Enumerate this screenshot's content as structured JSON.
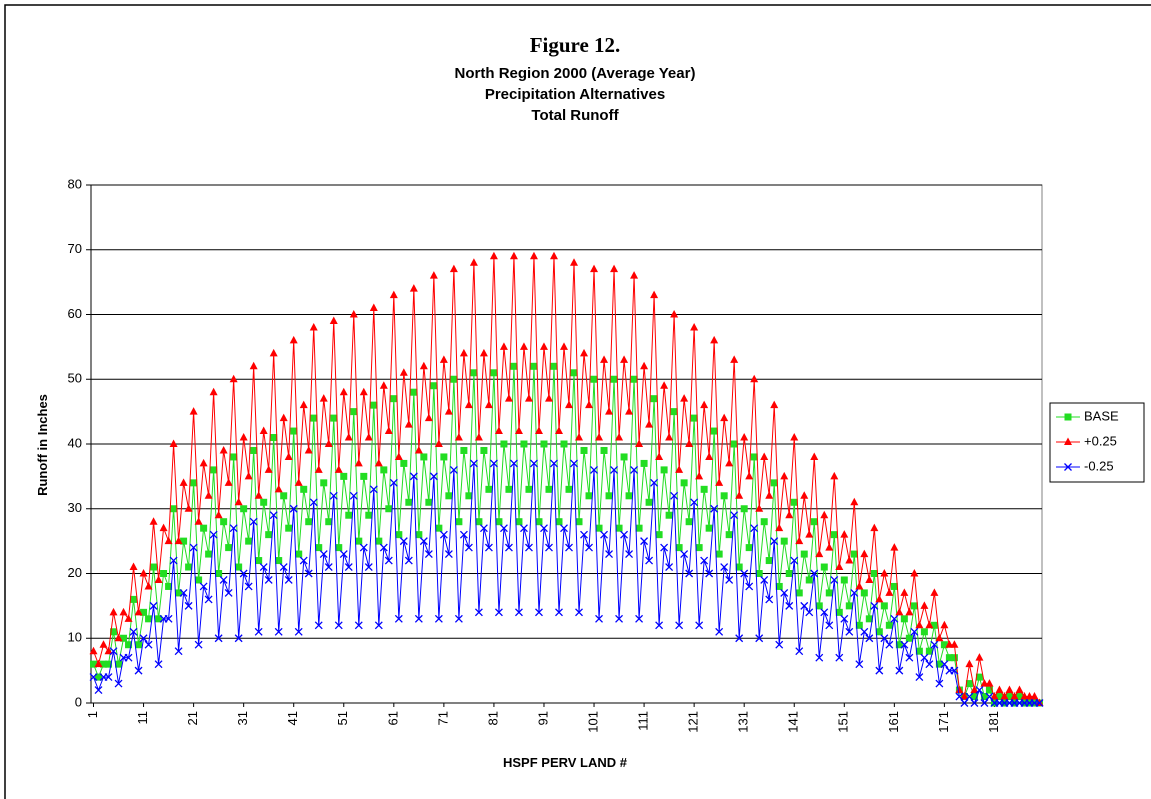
{
  "chart_data": {
    "type": "line",
    "figure_label": "Figure 12.",
    "title": "North Region 2000 (Average Year)",
    "subtitle": "Precipitation Alternatives",
    "subtitle2": "Total Runoff",
    "x_label": "HSPF PERV LAND #",
    "y_label": "Runoff in Inches",
    "ylim": [
      0,
      80
    ],
    "yticks": [
      0,
      10,
      20,
      30,
      40,
      50,
      60,
      70,
      80
    ],
    "grid": true,
    "legend": "right",
    "categories": [
      "1",
      null,
      null,
      null,
      null,
      null,
      null,
      null,
      null,
      null,
      "11",
      null,
      null,
      null,
      null,
      null,
      null,
      null,
      null,
      null,
      "21",
      null,
      null,
      null,
      null,
      null,
      null,
      null,
      null,
      null,
      "31",
      null,
      null,
      null,
      null,
      null,
      null,
      null,
      null,
      null,
      "41",
      null,
      null,
      null,
      null,
      null,
      null,
      null,
      null,
      null,
      "51",
      null,
      null,
      null,
      null,
      null,
      null,
      null,
      null,
      null,
      "61",
      null,
      null,
      null,
      null,
      null,
      null,
      null,
      null,
      null,
      "71",
      null,
      null,
      null,
      null,
      null,
      null,
      null,
      null,
      null,
      "81",
      null,
      null,
      null,
      null,
      null,
      null,
      null,
      null,
      null,
      "91",
      null,
      null,
      null,
      null,
      null,
      null,
      null,
      null,
      null,
      "101",
      null,
      null,
      null,
      null,
      null,
      null,
      null,
      null,
      null,
      "111",
      null,
      null,
      null,
      null,
      null,
      null,
      null,
      null,
      null,
      "121",
      null,
      null,
      null,
      null,
      null,
      null,
      null,
      null,
      null,
      "131",
      null,
      null,
      null,
      null,
      null,
      null,
      null,
      null,
      null,
      "141",
      null,
      null,
      null,
      null,
      null,
      null,
      null,
      null,
      null,
      "151",
      null,
      null,
      null,
      null,
      null,
      null,
      null,
      null,
      null,
      "161",
      null,
      null,
      null,
      null,
      null,
      null,
      null,
      null,
      null,
      "171",
      null,
      null,
      null,
      null,
      null,
      null,
      null,
      null,
      null,
      "181",
      null,
      null,
      null,
      null,
      null,
      null,
      null,
      null,
      null
    ],
    "series": [
      {
        "name": "BASE",
        "color": "#22dd22",
        "marker": "square",
        "values": [
          6,
          4,
          6,
          6,
          11,
          6,
          10,
          9,
          16,
          9,
          14,
          13,
          21,
          13,
          20,
          18,
          30,
          17,
          25,
          21,
          34,
          19,
          27,
          23,
          36,
          20,
          28,
          24,
          38,
          21,
          30,
          25,
          39,
          22,
          31,
          26,
          41,
          22,
          32,
          27,
          42,
          23,
          33,
          28,
          44,
          24,
          34,
          28,
          44,
          24,
          35,
          29,
          45,
          25,
          35,
          29,
          46,
          25,
          36,
          30,
          47,
          26,
          37,
          31,
          48,
          26,
          38,
          31,
          49,
          27,
          38,
          32,
          50,
          28,
          39,
          32,
          51,
          28,
          39,
          33,
          51,
          28,
          40,
          33,
          52,
          28,
          40,
          33,
          52,
          28,
          40,
          33,
          52,
          28,
          40,
          33,
          51,
          28,
          39,
          32,
          50,
          27,
          39,
          32,
          50,
          27,
          38,
          32,
          50,
          27,
          37,
          31,
          47,
          26,
          36,
          29,
          45,
          24,
          34,
          28,
          44,
          24,
          33,
          27,
          42,
          23,
          32,
          26,
          40,
          21,
          30,
          24,
          38,
          20,
          28,
          22,
          34,
          18,
          25,
          20,
          31,
          17,
          23,
          19,
          28,
          15,
          21,
          17,
          26,
          14,
          19,
          15,
          23,
          12,
          17,
          13,
          20,
          11,
          15,
          12,
          18,
          9,
          13,
          10,
          15,
          8,
          11,
          8,
          12,
          6,
          9,
          7,
          7,
          2,
          1,
          3,
          1,
          4,
          1,
          2,
          0,
          1,
          0,
          1,
          0,
          1,
          0,
          0,
          0,
          0
        ]
      },
      {
        "name": "+0.25",
        "color": "#ff0000",
        "marker": "triangle",
        "values": [
          8,
          6,
          9,
          8,
          14,
          10,
          14,
          13,
          21,
          14,
          20,
          18,
          28,
          19,
          27,
          25,
          40,
          25,
          34,
          30,
          45,
          28,
          37,
          32,
          48,
          29,
          39,
          34,
          50,
          31,
          41,
          35,
          52,
          32,
          42,
          36,
          54,
          33,
          44,
          38,
          56,
          34,
          46,
          39,
          58,
          36,
          47,
          40,
          59,
          36,
          48,
          41,
          60,
          37,
          48,
          41,
          61,
          37,
          49,
          42,
          63,
          38,
          51,
          43,
          64,
          39,
          52,
          44,
          66,
          40,
          53,
          45,
          67,
          41,
          54,
          46,
          68,
          41,
          54,
          46,
          69,
          42,
          55,
          47,
          69,
          42,
          55,
          47,
          69,
          42,
          55,
          47,
          69,
          42,
          55,
          46,
          68,
          41,
          54,
          46,
          67,
          41,
          53,
          45,
          67,
          41,
          53,
          45,
          66,
          40,
          52,
          43,
          63,
          38,
          49,
          41,
          60,
          36,
          47,
          40,
          58,
          35,
          46,
          38,
          56,
          34,
          44,
          37,
          53,
          32,
          41,
          35,
          50,
          30,
          38,
          32,
          46,
          27,
          35,
          29,
          41,
          25,
          32,
          26,
          38,
          23,
          29,
          24,
          35,
          21,
          26,
          22,
          31,
          18,
          23,
          19,
          27,
          16,
          20,
          17,
          24,
          14,
          17,
          14,
          20,
          12,
          15,
          12,
          17,
          10,
          12,
          9,
          9,
          2,
          1,
          6,
          2,
          7,
          3,
          3,
          1,
          2,
          1,
          2,
          1,
          2,
          1,
          1,
          1,
          0
        ]
      },
      {
        "name": "-0.25",
        "color": "#0000ff",
        "marker": "x",
        "values": [
          4,
          2,
          4,
          4,
          8,
          3,
          7,
          7,
          11,
          5,
          10,
          9,
          15,
          6,
          13,
          13,
          22,
          8,
          17,
          15,
          24,
          9,
          18,
          16,
          26,
          10,
          19,
          17,
          27,
          10,
          20,
          18,
          28,
          11,
          21,
          19,
          29,
          11,
          21,
          19,
          30,
          11,
          22,
          20,
          31,
          12,
          23,
          21,
          32,
          12,
          23,
          21,
          32,
          12,
          24,
          21,
          33,
          12,
          24,
          22,
          34,
          13,
          25,
          22,
          35,
          13,
          25,
          23,
          35,
          13,
          26,
          23,
          36,
          13,
          26,
          24,
          37,
          14,
          27,
          24,
          37,
          14,
          27,
          24,
          37,
          14,
          27,
          24,
          37,
          14,
          27,
          24,
          37,
          14,
          27,
          24,
          37,
          14,
          26,
          24,
          36,
          13,
          26,
          23,
          36,
          13,
          26,
          23,
          36,
          13,
          25,
          22,
          34,
          12,
          24,
          21,
          32,
          12,
          23,
          20,
          31,
          12,
          22,
          20,
          30,
          11,
          21,
          19,
          29,
          10,
          20,
          18,
          27,
          10,
          19,
          16,
          25,
          9,
          17,
          15,
          22,
          8,
          15,
          14,
          20,
          7,
          14,
          12,
          19,
          7,
          13,
          11,
          17,
          6,
          11,
          10,
          15,
          5,
          10,
          9,
          13,
          5,
          9,
          7,
          11,
          4,
          7,
          6,
          9,
          3,
          6,
          5,
          5,
          1,
          0,
          1,
          0,
          2,
          0,
          1,
          0,
          0,
          0,
          0,
          0,
          0,
          0,
          0,
          0,
          0
        ]
      }
    ]
  }
}
